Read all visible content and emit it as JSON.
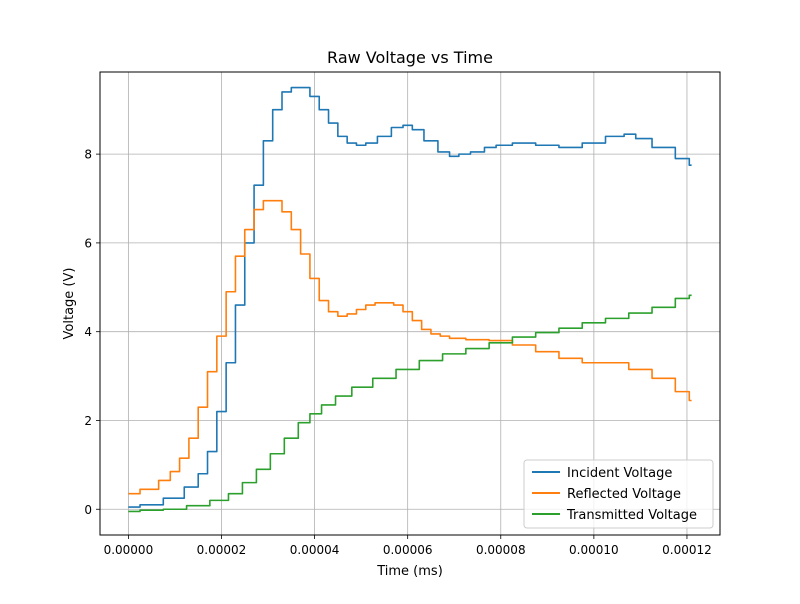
{
  "chart_data": {
    "type": "line",
    "title": "Raw Voltage vs Time",
    "xlabel": "Time (ms)",
    "ylabel": "Voltage (V)",
    "xlim": [
      -6.1e-06,
      0.0001271
    ],
    "ylim": [
      -0.58,
      9.85
    ],
    "xticks": [
      0,
      2e-05,
      4e-05,
      6e-05,
      8e-05,
      0.0001,
      0.00012
    ],
    "xtick_labels": [
      "0.00000",
      "0.00002",
      "0.00004",
      "0.00006",
      "0.00008",
      "0.00010",
      "0.00012"
    ],
    "yticks": [
      0,
      2,
      4,
      6,
      8
    ],
    "ytick_labels": [
      "0",
      "2",
      "4",
      "6",
      "8"
    ],
    "grid": true,
    "legend_position": "lower-right",
    "series": [
      {
        "name": "Incident Voltage",
        "color": "#1f77b4",
        "x": [
          0,
          5e-06,
          1e-05,
          1.4e-05,
          1.6e-05,
          1.8e-05,
          2e-05,
          2.2e-05,
          2.4e-05,
          2.6e-05,
          2.8e-05,
          3e-05,
          3.2e-05,
          3.4e-05,
          3.6e-05,
          3.8e-05,
          4e-05,
          4.2e-05,
          4.4e-05,
          4.6e-05,
          4.8e-05,
          5e-05,
          5.2e-05,
          5.5e-05,
          5.8e-05,
          6e-05,
          6.2e-05,
          6.5e-05,
          6.8e-05,
          7e-05,
          7.2e-05,
          7.5e-05,
          7.8e-05,
          8e-05,
          8.5e-05,
          9e-05,
          9.5e-05,
          0.0001,
          0.000105,
          0.000108,
          0.00011,
          0.000115,
          0.00012,
          0.000121
        ],
        "y": [
          0.05,
          0.1,
          0.25,
          0.5,
          0.8,
          1.3,
          2.2,
          3.3,
          4.6,
          6.0,
          7.3,
          8.3,
          9.0,
          9.4,
          9.5,
          9.5,
          9.3,
          9.0,
          8.7,
          8.4,
          8.25,
          8.2,
          8.25,
          8.4,
          8.6,
          8.65,
          8.55,
          8.3,
          8.05,
          7.95,
          8.0,
          8.05,
          8.15,
          8.2,
          8.25,
          8.2,
          8.15,
          8.25,
          8.4,
          8.45,
          8.35,
          8.15,
          7.9,
          7.75
        ]
      },
      {
        "name": "Reflected Voltage",
        "color": "#ff7f0e",
        "x": [
          0,
          5e-06,
          8e-06,
          1e-05,
          1.2e-05,
          1.4e-05,
          1.6e-05,
          1.8e-05,
          2e-05,
          2.2e-05,
          2.4e-05,
          2.6e-05,
          2.8e-05,
          3e-05,
          3.2e-05,
          3.4e-05,
          3.6e-05,
          3.8e-05,
          4e-05,
          4.2e-05,
          4.4e-05,
          4.6e-05,
          4.8e-05,
          5e-05,
          5.2e-05,
          5.4e-05,
          5.6e-05,
          5.8e-05,
          6e-05,
          6.2e-05,
          6.4e-05,
          6.6e-05,
          6.8e-05,
          7e-05,
          7.5e-05,
          8e-05,
          8.5e-05,
          9e-05,
          9.5e-05,
          0.0001,
          0.000105,
          0.00011,
          0.000115,
          0.00012,
          0.000121
        ],
        "y": [
          0.35,
          0.45,
          0.65,
          0.85,
          1.15,
          1.6,
          2.3,
          3.1,
          3.9,
          4.9,
          5.7,
          6.3,
          6.75,
          6.95,
          6.95,
          6.7,
          6.3,
          5.75,
          5.2,
          4.7,
          4.45,
          4.35,
          4.4,
          4.5,
          4.6,
          4.65,
          4.65,
          4.6,
          4.45,
          4.25,
          4.05,
          3.95,
          3.9,
          3.85,
          3.82,
          3.8,
          3.7,
          3.55,
          3.4,
          3.3,
          3.3,
          3.15,
          2.95,
          2.65,
          2.45
        ]
      },
      {
        "name": "Transmitted Voltage",
        "color": "#2ca02c",
        "x": [
          0,
          5e-06,
          1e-05,
          1.5e-05,
          2e-05,
          2.3e-05,
          2.6e-05,
          2.9e-05,
          3.2e-05,
          3.5e-05,
          3.8e-05,
          4e-05,
          4.3e-05,
          4.6e-05,
          5e-05,
          5.5e-05,
          6e-05,
          6.5e-05,
          7e-05,
          7.5e-05,
          8e-05,
          8.5e-05,
          9e-05,
          9.5e-05,
          0.0001,
          0.000105,
          0.00011,
          0.000115,
          0.00012,
          0.000121
        ],
        "y": [
          -0.05,
          -0.02,
          0.0,
          0.08,
          0.2,
          0.35,
          0.6,
          0.9,
          1.25,
          1.6,
          1.95,
          2.15,
          2.35,
          2.55,
          2.75,
          2.95,
          3.15,
          3.35,
          3.5,
          3.62,
          3.75,
          3.88,
          3.98,
          4.08,
          4.2,
          4.3,
          4.42,
          4.55,
          4.75,
          4.82
        ]
      }
    ]
  }
}
